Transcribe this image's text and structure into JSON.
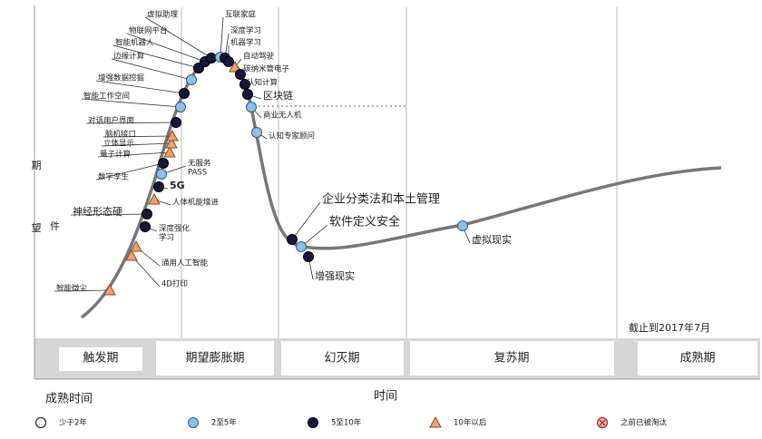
{
  "y_axis_label": [
    "期",
    "望"
  ],
  "x_axis_label": "时间",
  "as_of": "截止到2017年7月",
  "phases": [
    "触发期",
    "期望膨胀期",
    "幻灭期",
    "复苏期",
    "成熟期"
  ],
  "legend": {
    "title": "成熟时间",
    "items": [
      {
        "label": "少于2年",
        "marker": "open"
      },
      {
        "label": "2至5年",
        "marker": "light"
      },
      {
        "label": "5至10年",
        "marker": "dark"
      },
      {
        "label": "10年以后",
        "marker": "triangle"
      },
      {
        "label": "之前已被淘汰",
        "marker": "obsolete"
      }
    ]
  },
  "technologies": [
    {
      "label": [
        "智能微尘"
      ],
      "maturity": "10年以后"
    },
    {
      "label": [
        "4D打印"
      ],
      "maturity": "10年以后"
    },
    {
      "label": [
        "通用人工智能"
      ],
      "maturity": "10年以后"
    },
    {
      "label": [
        "深度强化",
        "学习"
      ],
      "maturity": "5至10年"
    },
    {
      "label": [
        "神经形态硬",
        "件"
      ],
      "maturity": "5至10年"
    },
    {
      "label": [
        "人体机能增进"
      ],
      "maturity": "10年以后"
    },
    {
      "label": [
        "5G"
      ],
      "maturity": "5至10年"
    },
    {
      "label": [
        "无服务",
        "PASS"
      ],
      "maturity": "2至5年"
    },
    {
      "label": [
        "数字孪生"
      ],
      "maturity": "5至10年"
    },
    {
      "label": [
        "量子计算"
      ],
      "maturity": "10年以后"
    },
    {
      "label": [
        "立体显示"
      ],
      "maturity": "10年以后"
    },
    {
      "label": [
        "脑机接口"
      ],
      "maturity": "10年以后"
    },
    {
      "label": [
        "对话用户界面"
      ],
      "maturity": "5至10年"
    },
    {
      "label": [
        "智能工作空间"
      ],
      "maturity": "2至5年"
    },
    {
      "label": [
        "增强数据挖掘"
      ],
      "maturity": "5至10年"
    },
    {
      "label": [
        "边缘计算"
      ],
      "maturity": "2至5年"
    },
    {
      "label": [
        "智能机器人"
      ],
      "maturity": "5至10年"
    },
    {
      "label": [
        "物联网平台"
      ],
      "maturity": "5至10年"
    },
    {
      "label": [
        "虚拟助理"
      ],
      "maturity": "5至10年"
    },
    {
      "label": [
        "互联家庭"
      ],
      "maturity": "2至5年"
    },
    {
      "label": [
        "深度学习"
      ],
      "maturity": "5至10年"
    },
    {
      "label": [
        "机器学习"
      ],
      "maturity": "5至10年"
    },
    {
      "label": [
        "自动驾驶"
      ],
      "maturity": "10年以后"
    },
    {
      "label": [
        "碳纳米管电子"
      ],
      "maturity": "5至10年"
    },
    {
      "label": [
        "认知计算"
      ],
      "maturity": "5至10年"
    },
    {
      "label": [
        "区块链"
      ],
      "maturity": "5至10年"
    },
    {
      "label": [
        "商业无人机"
      ],
      "maturity": "2至5年"
    },
    {
      "label": [
        "认知专家顾问"
      ],
      "maturity": "2至5年"
    },
    {
      "label": [
        "企业分类法和本土管理"
      ],
      "maturity": "5至10年"
    },
    {
      "label": [
        "软件定义安全"
      ],
      "maturity": "2至5年"
    },
    {
      "label": [
        "增强现实"
      ],
      "maturity": "5至10年"
    },
    {
      "label": [
        "虚拟现实"
      ],
      "maturity": "2至5年"
    }
  ]
}
